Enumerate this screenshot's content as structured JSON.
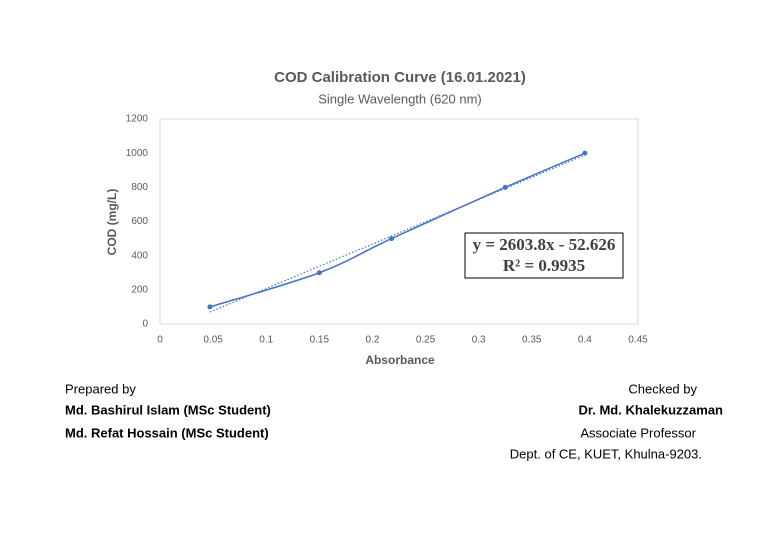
{
  "chart_data": {
    "type": "line",
    "title": "COD Calibration Curve (16.01.2021)",
    "subtitle": "Single Wavelength (620 nm)",
    "x_label": "Absorbance",
    "y_label": "COD (mg/L)",
    "x": [
      0.047,
      0.15,
      0.218,
      0.325,
      0.4
    ],
    "series": [
      {
        "name": "COD",
        "color": "#4472c4",
        "values": [
          100,
          300,
          500,
          800,
          1000
        ]
      }
    ],
    "xlim": [
      0,
      0.45
    ],
    "xticks": [
      0,
      0.05,
      0.1,
      0.15,
      0.2,
      0.25,
      0.3,
      0.35,
      0.4,
      0.45
    ],
    "ylim": [
      0,
      1200
    ],
    "yticks": [
      0,
      200,
      400,
      600,
      800,
      1000,
      1200
    ],
    "grid": false,
    "trendline": {
      "slope": 2603.8,
      "intercept": -52.626,
      "equation": "y = 2603.8x - 52.626",
      "r_squared": "R² = 0.9935"
    }
  },
  "footer": {
    "left": [
      "Prepared by",
      "Md. Bashirul Islam (MSc Student)",
      "Md. Refat Hossain (MSc Student)"
    ],
    "right": [
      "Checked by",
      "Dr. Md. Khalekuzzaman",
      "Associate Professor",
      "Dept. of CE, KUET, Khulna-9203."
    ]
  }
}
